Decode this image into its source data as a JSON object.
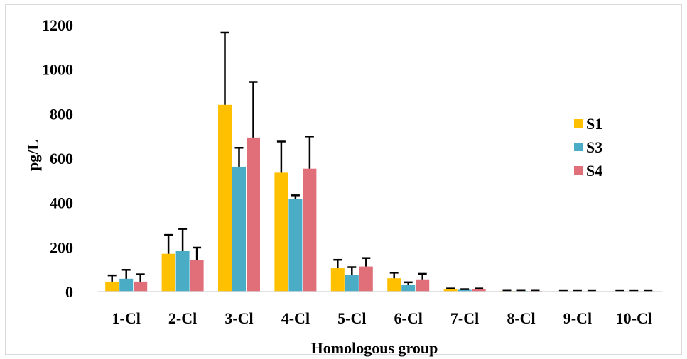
{
  "chart_data": {
    "type": "bar",
    "title": "",
    "xlabel": "Homologous group",
    "ylabel": "pg/L",
    "ylim": [
      0,
      1200
    ],
    "yticks": [
      0,
      200,
      400,
      600,
      800,
      1000,
      1200
    ],
    "grid": false,
    "legend_position": "right",
    "categories": [
      "1-Cl",
      "2-Cl",
      "3-Cl",
      "4-Cl",
      "5-Cl",
      "6-Cl",
      "7-Cl",
      "8-Cl",
      "9-Cl",
      "10-Cl"
    ],
    "series": [
      {
        "name": "S1",
        "color": "#FFC000",
        "values": [
          45,
          170,
          840,
          535,
          105,
          60,
          10,
          3,
          2,
          2
        ],
        "errors": [
          28,
          85,
          325,
          140,
          38,
          25,
          4,
          1,
          1,
          1
        ]
      },
      {
        "name": "S3",
        "color": "#4BACC6",
        "values": [
          58,
          182,
          562,
          415,
          75,
          32,
          8,
          3,
          2,
          2
        ],
        "errors": [
          40,
          100,
          85,
          18,
          35,
          10,
          3,
          1,
          1,
          1
        ]
      },
      {
        "name": "S4",
        "color": "#E06F79",
        "values": [
          45,
          143,
          693,
          553,
          113,
          55,
          10,
          3,
          2,
          2
        ],
        "errors": [
          33,
          55,
          250,
          145,
          38,
          25,
          4,
          1,
          1,
          1
        ]
      }
    ]
  }
}
